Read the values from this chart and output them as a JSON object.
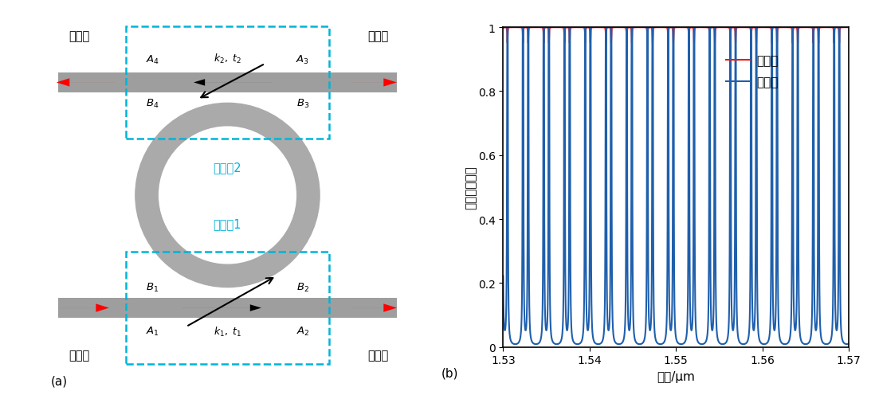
{
  "panel_a_label": "(a)",
  "panel_b_label": "(b)",
  "legend_through": "直通端",
  "legend_drop": "下载端",
  "label_xiazai": "下载端",
  "label_shangchuan": "上传端",
  "label_shuru": "输入端",
  "label_zhitong": "直通端",
  "label_ouhequ2": "耦合区2",
  "label_ouhequ1": "耦合区1",
  "ylabel": "归一化传输谱",
  "xlabel": "波长/μm",
  "xlim": [
    1.53,
    1.57
  ],
  "ylim": [
    0.0,
    1.0
  ],
  "yticks": [
    0.0,
    0.2,
    0.4,
    0.6,
    0.8,
    1.0
  ],
  "xticks": [
    1.53,
    1.54,
    1.55,
    1.56,
    1.57
  ],
  "res1": 1.5395,
  "res2": 1.5665,
  "through_color": "#e8191a",
  "drop_color": "#1f5fac",
  "line_width": 1.5,
  "waveguide_color": "#9e9e9e",
  "ring_color": "#aaaaaa",
  "dashed_box_color": "#00b4d8",
  "bg_color": "#ffffff"
}
